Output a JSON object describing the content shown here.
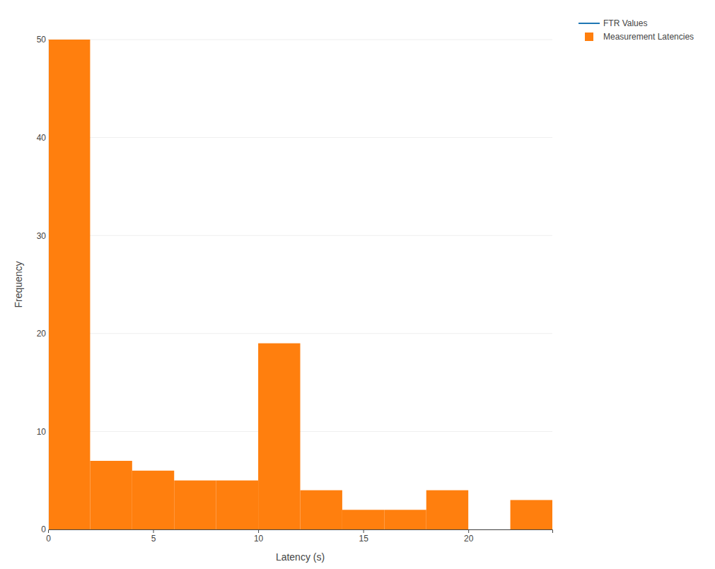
{
  "chart_data": {
    "type": "histogram",
    "x_label": "Latency (s)",
    "y_label": "Frequency",
    "bins": [
      0,
      2,
      4,
      6,
      8,
      10,
      12,
      14,
      16,
      18,
      20,
      22,
      24
    ],
    "series": [
      {
        "name": "FTR Values",
        "type": "line",
        "color": "#1f77b4",
        "values": [
          null,
          null,
          null,
          null,
          null,
          null,
          null,
          null,
          null,
          null,
          null,
          null
        ]
      },
      {
        "name": "Measurement Latencies",
        "type": "bar",
        "color": "#ff7f0e",
        "values": [
          50,
          7,
          6,
          5,
          5,
          19,
          4,
          2,
          2,
          4,
          0,
          3
        ]
      }
    ],
    "xlim": [
      0,
      24
    ],
    "xticks": [
      0,
      5,
      10,
      15,
      20
    ],
    "ylim": [
      0,
      50
    ],
    "yticks": [
      0,
      10,
      20,
      30,
      40,
      50
    ],
    "grid": true,
    "legend": "top-right"
  }
}
